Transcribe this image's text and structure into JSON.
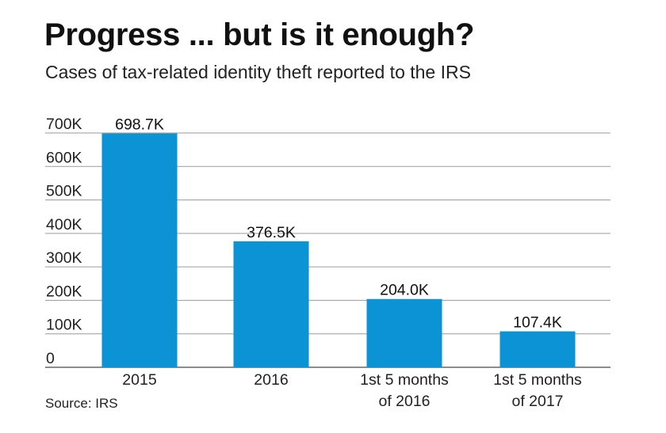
{
  "header": {
    "title": "Progress ... but is it enough?",
    "subtitle": "Cases of tax-related identity theft reported to the IRS"
  },
  "footer": {
    "source": "Source: IRS"
  },
  "colors": {
    "bar": "#0b93d5",
    "grid": "#9a9a9a",
    "baseline": "#666666"
  },
  "chart_data": {
    "type": "bar",
    "title": "Progress ... but is it enough?",
    "subtitle": "Cases of tax-related identity theft reported to the IRS",
    "categories": [
      [
        "2015"
      ],
      [
        "2016"
      ],
      [
        "1st 5 months",
        "of 2016"
      ],
      [
        "1st 5 months",
        "of 2017"
      ]
    ],
    "values": [
      698.7,
      376.5,
      204.0,
      107.4
    ],
    "value_labels": [
      "698.7K",
      "376.5K",
      "204.0K",
      "107.4K"
    ],
    "unit": "K",
    "ylim": [
      0,
      700
    ],
    "yticks": [
      0,
      100,
      200,
      300,
      400,
      500,
      600,
      700
    ],
    "ytick_labels": [
      "0",
      "100K",
      "200K",
      "300K",
      "400K",
      "500K",
      "600K",
      "700K"
    ],
    "xlabel": "",
    "ylabel": "",
    "grid": true,
    "legend": false
  }
}
